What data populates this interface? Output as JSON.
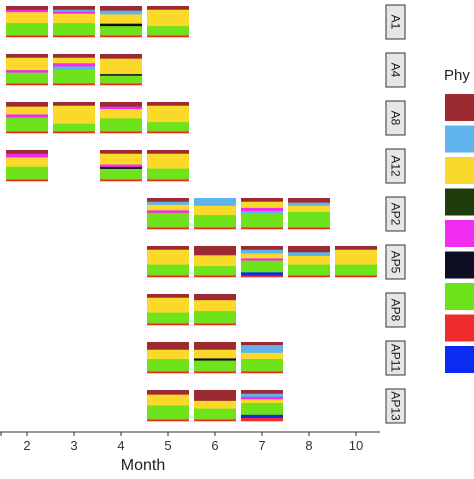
{
  "chart_data": {
    "type": "bar",
    "title": "",
    "xlabel": "Month",
    "ylabel": "",
    "legend_title": "Phy",
    "legend_placement": "right",
    "x_ticks": [
      "2",
      "3",
      "4",
      "5",
      "6",
      "7",
      "8",
      "10"
    ],
    "colors": {
      "dark_red": "#9b2a32",
      "light_blue": "#5db3ea",
      "yellow": "#fbd92a",
      "dark_green": "#1f3d0c",
      "magenta": "#f12bf0",
      "navy_black": "#0d0d24",
      "green": "#6ee31b",
      "red": "#f02b2b",
      "blue": "#0a2cf0"
    },
    "legend_colors": [
      "dark_red",
      "light_blue",
      "yellow",
      "dark_green",
      "magenta",
      "navy_black",
      "green",
      "red",
      "blue"
    ],
    "panels": [
      {
        "label": "A1",
        "bars": [
          {
            "month": "2",
            "composition": [
              [
                "dark_red",
                0.12
              ],
              [
                "magenta",
                0.08
              ],
              [
                "yellow",
                0.35
              ],
              [
                "green",
                0.4
              ],
              [
                "red",
                0.05
              ]
            ]
          },
          {
            "month": "3",
            "composition": [
              [
                "dark_red",
                0.12
              ],
              [
                "light_blue",
                0.06
              ],
              [
                "magenta",
                0.07
              ],
              [
                "yellow",
                0.3
              ],
              [
                "green",
                0.4
              ],
              [
                "red",
                0.05
              ]
            ]
          },
          {
            "month": "4",
            "composition": [
              [
                "dark_red",
                0.15
              ],
              [
                "light_blue",
                0.12
              ],
              [
                "yellow",
                0.3
              ],
              [
                "navy_black",
                0.08
              ],
              [
                "green",
                0.3
              ],
              [
                "red",
                0.05
              ]
            ]
          },
          {
            "month": "5",
            "composition": [
              [
                "dark_red",
                0.12
              ],
              [
                "yellow",
                0.53
              ],
              [
                "green",
                0.3
              ],
              [
                "red",
                0.05
              ]
            ]
          }
        ]
      },
      {
        "label": "A4",
        "bars": [
          {
            "month": "2",
            "composition": [
              [
                "dark_red",
                0.12
              ],
              [
                "yellow",
                0.4
              ],
              [
                "magenta",
                0.08
              ],
              [
                "green",
                0.35
              ],
              [
                "red",
                0.05
              ]
            ]
          },
          {
            "month": "3",
            "composition": [
              [
                "dark_red",
                0.12
              ],
              [
                "yellow",
                0.18
              ],
              [
                "magenta",
                0.1
              ],
              [
                "light_blue",
                0.1
              ],
              [
                "green",
                0.45
              ],
              [
                "red",
                0.05
              ]
            ]
          },
          {
            "month": "4",
            "composition": [
              [
                "dark_red",
                0.15
              ],
              [
                "yellow",
                0.5
              ],
              [
                "navy_black",
                0.05
              ],
              [
                "green",
                0.25
              ],
              [
                "red",
                0.05
              ]
            ]
          }
        ]
      },
      {
        "label": "A8",
        "bars": [
          {
            "month": "2",
            "composition": [
              [
                "dark_red",
                0.15
              ],
              [
                "yellow",
                0.25
              ],
              [
                "magenta",
                0.1
              ],
              [
                "green",
                0.45
              ],
              [
                "red",
                0.05
              ]
            ]
          },
          {
            "month": "3",
            "composition": [
              [
                "dark_red",
                0.12
              ],
              [
                "yellow",
                0.58
              ],
              [
                "green",
                0.25
              ],
              [
                "red",
                0.05
              ]
            ]
          },
          {
            "month": "4",
            "composition": [
              [
                "dark_red",
                0.15
              ],
              [
                "magenta",
                0.08
              ],
              [
                "yellow",
                0.3
              ],
              [
                "green",
                0.42
              ],
              [
                "red",
                0.05
              ]
            ]
          },
          {
            "month": "5",
            "composition": [
              [
                "dark_red",
                0.12
              ],
              [
                "yellow",
                0.53
              ],
              [
                "green",
                0.3
              ],
              [
                "red",
                0.05
              ]
            ]
          }
        ]
      },
      {
        "label": "A12",
        "bars": [
          {
            "month": "2",
            "composition": [
              [
                "dark_red",
                0.12
              ],
              [
                "magenta",
                0.12
              ],
              [
                "yellow",
                0.3
              ],
              [
                "green",
                0.41
              ],
              [
                "red",
                0.05
              ]
            ]
          },
          {
            "month": "4",
            "composition": [
              [
                "dark_red",
                0.12
              ],
              [
                "yellow",
                0.35
              ],
              [
                "magenta",
                0.08
              ],
              [
                "navy_black",
                0.06
              ],
              [
                "green",
                0.34
              ],
              [
                "red",
                0.05
              ]
            ]
          },
          {
            "month": "5",
            "composition": [
              [
                "dark_red",
                0.12
              ],
              [
                "yellow",
                0.48
              ],
              [
                "green",
                0.35
              ],
              [
                "red",
                0.05
              ]
            ]
          }
        ]
      },
      {
        "label": "AP2",
        "bars": [
          {
            "month": "5",
            "composition": [
              [
                "dark_red",
                0.12
              ],
              [
                "light_blue",
                0.1
              ],
              [
                "yellow",
                0.18
              ],
              [
                "magenta",
                0.08
              ],
              [
                "green",
                0.47
              ],
              [
                "red",
                0.05
              ]
            ]
          },
          {
            "month": "6",
            "composition": [
              [
                "light_blue",
                0.25
              ],
              [
                "yellow",
                0.3
              ],
              [
                "green",
                0.4
              ],
              [
                "red",
                0.05
              ]
            ]
          },
          {
            "month": "7",
            "composition": [
              [
                "dark_red",
                0.12
              ],
              [
                "yellow",
                0.2
              ],
              [
                "magenta",
                0.1
              ],
              [
                "light_blue",
                0.08
              ],
              [
                "green",
                0.45
              ],
              [
                "red",
                0.05
              ]
            ]
          },
          {
            "month": "8",
            "composition": [
              [
                "dark_red",
                0.15
              ],
              [
                "light_blue",
                0.1
              ],
              [
                "yellow",
                0.2
              ],
              [
                "green",
                0.5
              ],
              [
                "red",
                0.05
              ]
            ]
          }
        ]
      },
      {
        "label": "AP5",
        "bars": [
          {
            "month": "5",
            "composition": [
              [
                "dark_red",
                0.12
              ],
              [
                "yellow",
                0.48
              ],
              [
                "green",
                0.35
              ],
              [
                "red",
                0.05
              ]
            ]
          },
          {
            "month": "6",
            "composition": [
              [
                "dark_red",
                0.3
              ],
              [
                "yellow",
                0.35
              ],
              [
                "green",
                0.3
              ],
              [
                "red",
                0.05
              ]
            ]
          },
          {
            "month": "7",
            "composition": [
              [
                "dark_red",
                0.12
              ],
              [
                "light_blue",
                0.12
              ],
              [
                "yellow",
                0.16
              ],
              [
                "magenta",
                0.07
              ],
              [
                "green",
                0.38
              ],
              [
                "blue",
                0.1
              ],
              [
                "red",
                0.05
              ]
            ]
          },
          {
            "month": "8",
            "composition": [
              [
                "dark_red",
                0.2
              ],
              [
                "light_blue",
                0.12
              ],
              [
                "yellow",
                0.28
              ],
              [
                "green",
                0.35
              ],
              [
                "red",
                0.05
              ]
            ]
          },
          {
            "month": "10",
            "composition": [
              [
                "dark_red",
                0.12
              ],
              [
                "yellow",
                0.48
              ],
              [
                "green",
                0.35
              ],
              [
                "red",
                0.05
              ]
            ]
          }
        ]
      },
      {
        "label": "AP8",
        "bars": [
          {
            "month": "5",
            "composition": [
              [
                "dark_red",
                0.12
              ],
              [
                "yellow",
                0.48
              ],
              [
                "green",
                0.35
              ],
              [
                "red",
                0.05
              ]
            ]
          },
          {
            "month": "6",
            "composition": [
              [
                "dark_red",
                0.2
              ],
              [
                "yellow",
                0.35
              ],
              [
                "green",
                0.4
              ],
              [
                "red",
                0.05
              ]
            ]
          }
        ]
      },
      {
        "label": "AP11",
        "bars": [
          {
            "month": "5",
            "composition": [
              [
                "dark_red",
                0.25
              ],
              [
                "yellow",
                0.3
              ],
              [
                "green",
                0.4
              ],
              [
                "red",
                0.05
              ]
            ]
          },
          {
            "month": "6",
            "composition": [
              [
                "dark_red",
                0.25
              ],
              [
                "yellow",
                0.28
              ],
              [
                "navy_black",
                0.07
              ],
              [
                "green",
                0.35
              ],
              [
                "red",
                0.05
              ]
            ]
          },
          {
            "month": "7",
            "composition": [
              [
                "dark_red",
                0.1
              ],
              [
                "light_blue",
                0.25
              ],
              [
                "yellow",
                0.2
              ],
              [
                "green",
                0.4
              ],
              [
                "red",
                0.05
              ]
            ]
          }
        ]
      },
      {
        "label": "AP13",
        "bars": [
          {
            "month": "5",
            "composition": [
              [
                "dark_red",
                0.15
              ],
              [
                "yellow",
                0.35
              ],
              [
                "green",
                0.45
              ],
              [
                "red",
                0.05
              ]
            ]
          },
          {
            "month": "6",
            "composition": [
              [
                "dark_red",
                0.35
              ],
              [
                "yellow",
                0.25
              ],
              [
                "green",
                0.35
              ],
              [
                "red",
                0.05
              ]
            ]
          },
          {
            "month": "7",
            "composition": [
              [
                "dark_red",
                0.12
              ],
              [
                "light_blue",
                0.1
              ],
              [
                "magenta",
                0.08
              ],
              [
                "yellow",
                0.12
              ],
              [
                "green",
                0.38
              ],
              [
                "blue",
                0.1
              ],
              [
                "red",
                0.1
              ]
            ]
          }
        ]
      }
    ]
  }
}
